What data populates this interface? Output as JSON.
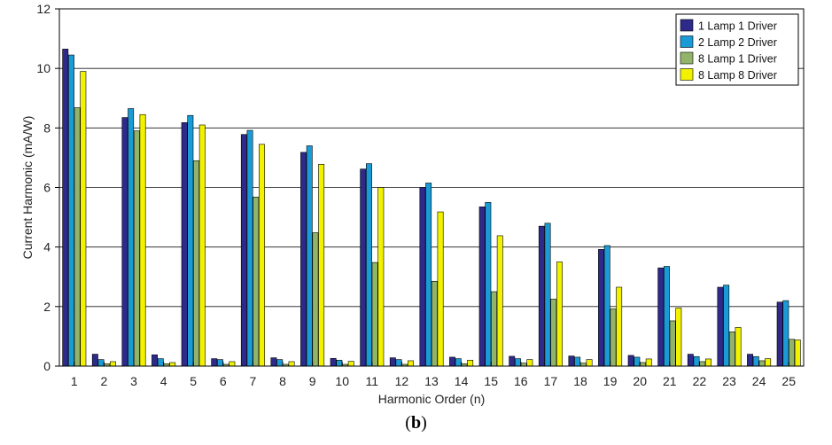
{
  "chart_data": {
    "type": "bar",
    "title": "",
    "xlabel": "Harmonic Order (n)",
    "ylabel": "Current Harmonic (mA/W)",
    "ylim": [
      0,
      12
    ],
    "yticks": [
      "0",
      "2",
      "4",
      "6",
      "8",
      "10",
      "12"
    ],
    "grid": "horizontal",
    "legend_position": "top-right",
    "categories": [
      "1",
      "2",
      "3",
      "4",
      "5",
      "6",
      "7",
      "8",
      "9",
      "10",
      "11",
      "12",
      "13",
      "14",
      "15",
      "16",
      "17",
      "18",
      "19",
      "20",
      "21",
      "22",
      "23",
      "24",
      "25"
    ],
    "series": [
      {
        "name": "1 Lamp 1 Driver",
        "color": "#2e2a8a",
        "values": [
          10.65,
          0.4,
          8.35,
          0.38,
          8.18,
          0.25,
          7.78,
          0.28,
          7.18,
          0.26,
          6.62,
          0.28,
          6.0,
          0.3,
          5.35,
          0.33,
          4.7,
          0.34,
          3.92,
          0.36,
          3.3,
          0.4,
          2.65,
          0.4,
          2.15
        ]
      },
      {
        "name": "2 Lamp 2 Driver",
        "color": "#1a9bd6",
        "values": [
          10.45,
          0.22,
          8.65,
          0.25,
          8.42,
          0.22,
          7.92,
          0.22,
          7.4,
          0.2,
          6.8,
          0.22,
          6.15,
          0.25,
          5.5,
          0.25,
          4.8,
          0.3,
          4.05,
          0.3,
          3.35,
          0.32,
          2.72,
          0.32,
          2.2
        ]
      },
      {
        "name": "8 Lamp 1 Driver",
        "color": "#92b36a",
        "values": [
          8.68,
          0.08,
          7.9,
          0.08,
          6.9,
          0.06,
          5.68,
          0.06,
          4.48,
          0.06,
          3.48,
          0.06,
          2.85,
          0.08,
          2.5,
          0.1,
          2.25,
          0.1,
          1.92,
          0.12,
          1.52,
          0.15,
          1.15,
          0.18,
          0.9
        ]
      },
      {
        "name": "8 Lamp 8 Driver",
        "color": "#f2f200",
        "values": [
          9.9,
          0.15,
          8.45,
          0.12,
          8.1,
          0.15,
          7.45,
          0.15,
          6.78,
          0.16,
          6.0,
          0.18,
          5.18,
          0.2,
          4.38,
          0.22,
          3.5,
          0.22,
          2.65,
          0.24,
          1.95,
          0.24,
          1.3,
          0.25,
          0.88
        ]
      }
    ]
  },
  "caption": {
    "open": "(",
    "letter": "b",
    "close": ")"
  }
}
